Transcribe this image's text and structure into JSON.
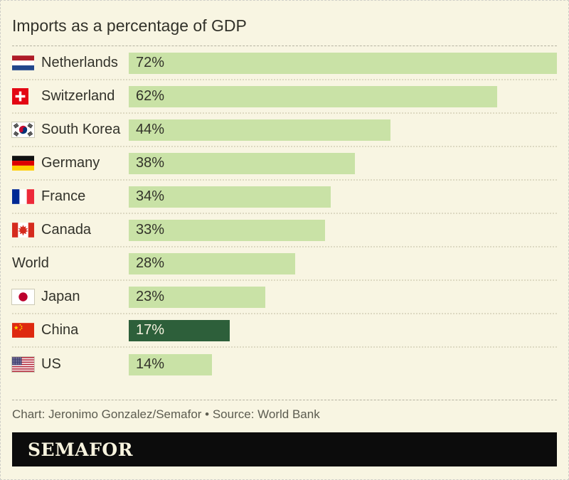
{
  "title": "Imports as a percentage of GDP",
  "footer": {
    "credit": "Chart: Jeronimo Gonzalez/Semafor • Source: World Bank"
  },
  "brand": {
    "logo_text": "SEMAFOR"
  },
  "colors": {
    "background": "#f8f5e2",
    "bar": "#c9e2a6",
    "bar_highlight": "#2d5f3a",
    "value_text": "#32322a",
    "value_text_highlight": "#f7f3e0",
    "banner_background": "#0c0c0c",
    "banner_text": "#f7f3de"
  },
  "chart_data": {
    "type": "bar",
    "orientation": "horizontal",
    "title": "Imports as a percentage of GDP",
    "unit": "%",
    "xlim": [
      0,
      72
    ],
    "grid": false,
    "legend": false,
    "categories": [
      "Netherlands",
      "Switzerland",
      "South Korea",
      "Germany",
      "France",
      "Canada",
      "World",
      "Japan",
      "China",
      "US"
    ],
    "values": [
      72,
      62,
      44,
      38,
      34,
      33,
      28,
      23,
      17,
      14
    ],
    "highlight_category": "China",
    "rows": [
      {
        "label": "Netherlands",
        "flag": "nl",
        "value": 72,
        "display": "72%",
        "highlight": false
      },
      {
        "label": "Switzerland",
        "flag": "ch",
        "value": 62,
        "display": "62%",
        "highlight": false
      },
      {
        "label": "South Korea",
        "flag": "kr",
        "value": 44,
        "display": "44%",
        "highlight": false
      },
      {
        "label": "Germany",
        "flag": "de",
        "value": 38,
        "display": "38%",
        "highlight": false
      },
      {
        "label": "France",
        "flag": "fr",
        "value": 34,
        "display": "34%",
        "highlight": false
      },
      {
        "label": "Canada",
        "flag": "ca",
        "value": 33,
        "display": "33%",
        "highlight": false
      },
      {
        "label": "World",
        "flag": null,
        "value": 28,
        "display": "28%",
        "highlight": false
      },
      {
        "label": "Japan",
        "flag": "jp",
        "value": 23,
        "display": "23%",
        "highlight": false
      },
      {
        "label": "China",
        "flag": "cn",
        "value": 17,
        "display": "17%",
        "highlight": true
      },
      {
        "label": "US",
        "flag": "us",
        "value": 14,
        "display": "14%",
        "highlight": false
      }
    ]
  }
}
